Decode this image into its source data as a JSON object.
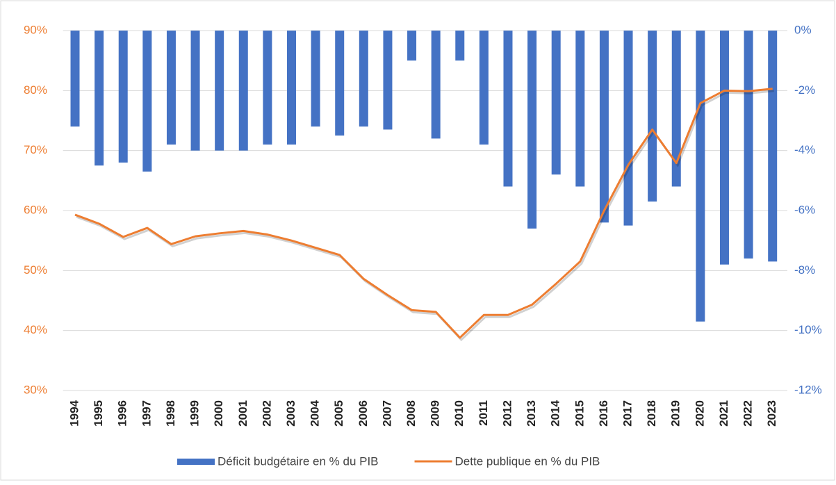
{
  "chart_data": {
    "type": "bar-line",
    "categories": [
      "1994",
      "1995",
      "1996",
      "1997",
      "1998",
      "1999",
      "2000",
      "2001",
      "2002",
      "2003",
      "2004",
      "2005",
      "2006",
      "2007",
      "2008",
      "2009",
      "2010",
      "2011",
      "2012",
      "2013",
      "2014",
      "2015",
      "2016",
      "2017",
      "2018",
      "2019",
      "2020",
      "2021",
      "2022",
      "2023"
    ],
    "series": [
      {
        "name": "Déficit budgétaire en % du PIB",
        "type": "bar",
        "axis": "y2",
        "color": "#4472c4",
        "values": [
          -3.2,
          -4.5,
          -4.4,
          -4.7,
          -3.8,
          -4.0,
          -4.0,
          -4.0,
          -3.8,
          -3.8,
          -3.2,
          -3.5,
          -3.2,
          -3.3,
          -1.0,
          -3.6,
          -1.0,
          -3.8,
          -5.2,
          -6.6,
          -4.8,
          -5.2,
          -6.4,
          -6.5,
          -5.7,
          -5.2,
          -9.7,
          -7.8,
          -7.6,
          -7.7
        ]
      },
      {
        "name": "Dette publique en % du PIB",
        "type": "line",
        "color": "#ed7d31",
        "values": [
          59.3,
          57.8,
          55.6,
          57.1,
          54.4,
          55.7,
          56.2,
          56.6,
          56.0,
          55.0,
          53.8,
          52.6,
          48.6,
          45.9,
          43.4,
          43.1,
          38.8,
          42.6,
          42.6,
          44.3,
          47.8,
          51.5,
          60.0,
          67.6,
          73.5,
          67.9,
          77.9,
          80.0,
          79.9,
          80.3
        ]
      }
    ],
    "ylim": [
      30,
      90
    ],
    "yticks": [
      {
        "value": 30,
        "label": "30%"
      },
      {
        "value": 40,
        "label": "40%"
      },
      {
        "value": 50,
        "label": "50%"
      },
      {
        "value": 60,
        "label": "60%"
      },
      {
        "value": 70,
        "label": "70%"
      },
      {
        "value": 80,
        "label": "80%"
      },
      {
        "value": 90,
        "label": "90%"
      }
    ],
    "y2lim": [
      -12,
      0
    ],
    "y2ticks": [
      {
        "value": -12,
        "label": "-12%"
      },
      {
        "value": -10,
        "label": "-10%"
      },
      {
        "value": -8,
        "label": "-8%"
      },
      {
        "value": -6,
        "label": "-6%"
      },
      {
        "value": -4,
        "label": "-4%"
      },
      {
        "value": -2,
        "label": "-2%"
      },
      {
        "value": 0,
        "label": "0%"
      }
    ],
    "grid": true
  }
}
